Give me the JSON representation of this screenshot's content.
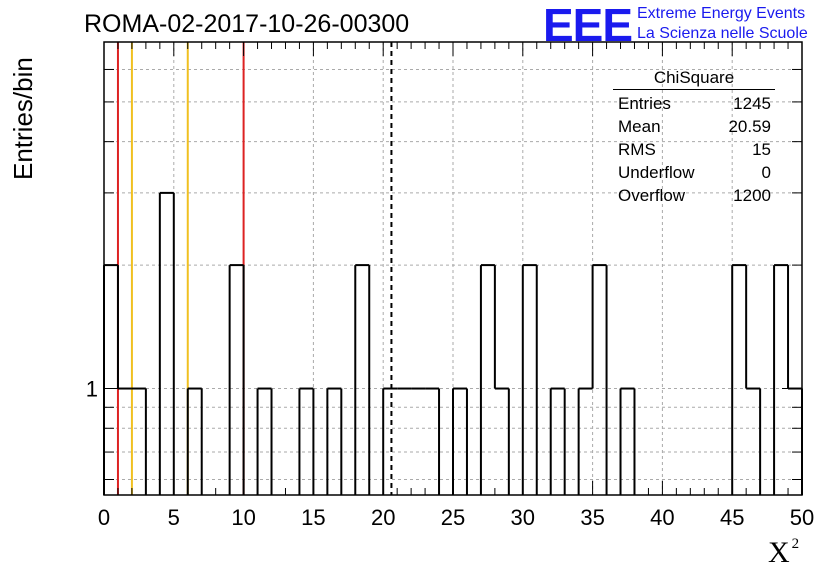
{
  "header": {
    "run_title": "ROMA-02-2017-10-26-00300"
  },
  "logo": {
    "mark": "EEE",
    "line1": "Extreme Energy Events",
    "line2": "La Scienza nelle Scuole",
    "color": "#1a1aee"
  },
  "chart_data": {
    "type": "step-histogram",
    "title": "ROMA-02-2017-10-26-00300",
    "xlabel": "X",
    "xlabel_superscript": "2",
    "ylabel": "Entries/bin",
    "xlim": [
      0,
      50
    ],
    "ylim": [
      0.55,
      7
    ],
    "yscale": "log",
    "grid": true,
    "bin_width": 1,
    "bin_edges_start": 0,
    "bin_counts": [
      2,
      1,
      1,
      0,
      3,
      0,
      1,
      0,
      0,
      2,
      0,
      1,
      0,
      0,
      1,
      0,
      1,
      0,
      2,
      0,
      1,
      1,
      1,
      1,
      0,
      1,
      0,
      2,
      1,
      0,
      2,
      0,
      1,
      0,
      1,
      2,
      0,
      1,
      0,
      0,
      0,
      0,
      0,
      0,
      0,
      2,
      1,
      0,
      2,
      1
    ],
    "x_ticks": [
      0,
      5,
      10,
      15,
      20,
      25,
      30,
      35,
      40,
      45,
      50
    ],
    "x_tick_labels": [
      "0",
      "5",
      "10",
      "15",
      "20",
      "25",
      "30",
      "35",
      "40",
      "45",
      "50"
    ],
    "y_tick_label": {
      "value": 1,
      "label": "1"
    },
    "reference_lines": [
      {
        "x": 1,
        "color": "#dd2222"
      },
      {
        "x": 2,
        "color": "#f0c020"
      },
      {
        "x": 6,
        "color": "#f0c020"
      },
      {
        "x": 10,
        "color": "#dd2222"
      }
    ],
    "mean_line": {
      "x": 20.59,
      "style": "dashed",
      "color": "#000000"
    },
    "stats_box": {
      "title": "ChiSquare",
      "rows": [
        {
          "label": "Entries",
          "value": "1245"
        },
        {
          "label": "Mean",
          "value": "20.59"
        },
        {
          "label": "RMS",
          "value": "15"
        },
        {
          "label": "Underflow",
          "value": "0"
        },
        {
          "label": "Overflow",
          "value": "1200"
        }
      ],
      "placement": "top-right"
    }
  }
}
